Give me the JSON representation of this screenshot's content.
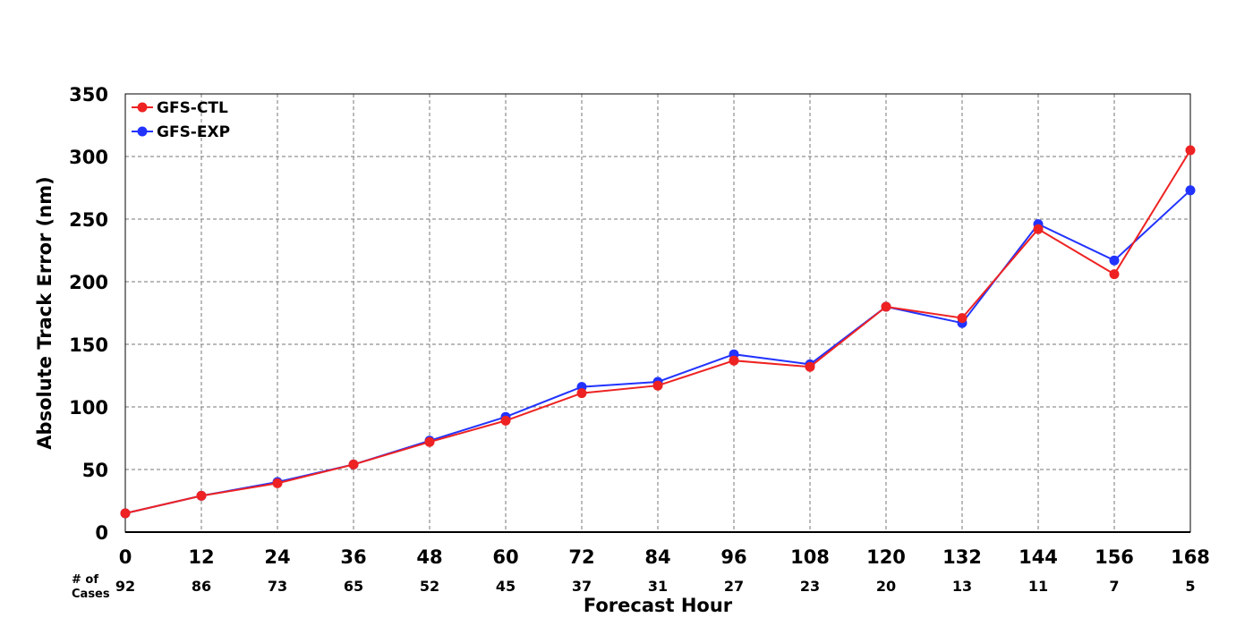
{
  "chart_data": {
    "type": "line",
    "title": "",
    "xlabel": "Forecast Hour",
    "ylabel": "Absolute Track Error (nm)",
    "x": [
      0,
      12,
      24,
      36,
      48,
      60,
      72,
      84,
      96,
      108,
      120,
      132,
      144,
      156,
      168
    ],
    "xlim": [
      0,
      168
    ],
    "ylim": [
      0,
      350
    ],
    "xticks": [
      0,
      12,
      24,
      36,
      48,
      60,
      72,
      84,
      96,
      108,
      120,
      132,
      144,
      156,
      168
    ],
    "yticks": [
      0,
      50,
      100,
      150,
      200,
      250,
      300,
      350
    ],
    "grid": true,
    "legend_position": "top-left",
    "series": [
      {
        "name": "GFS-CTL",
        "color": "#ee2222",
        "values": [
          15,
          29,
          39,
          54,
          72,
          89,
          111,
          117,
          137,
          132,
          180,
          171,
          242,
          206,
          305
        ]
      },
      {
        "name": "GFS-EXP",
        "color": "#2233ff",
        "values": [
          15,
          29,
          40,
          54,
          73,
          92,
          116,
          120,
          142,
          134,
          180,
          167,
          246,
          217,
          273
        ]
      }
    ],
    "cases": {
      "label": "# of Cases",
      "label_line1": "# of",
      "label_line2": "Cases",
      "values": [
        92,
        86,
        73,
        65,
        52,
        45,
        37,
        31,
        27,
        23,
        20,
        13,
        11,
        7,
        5
      ]
    }
  }
}
